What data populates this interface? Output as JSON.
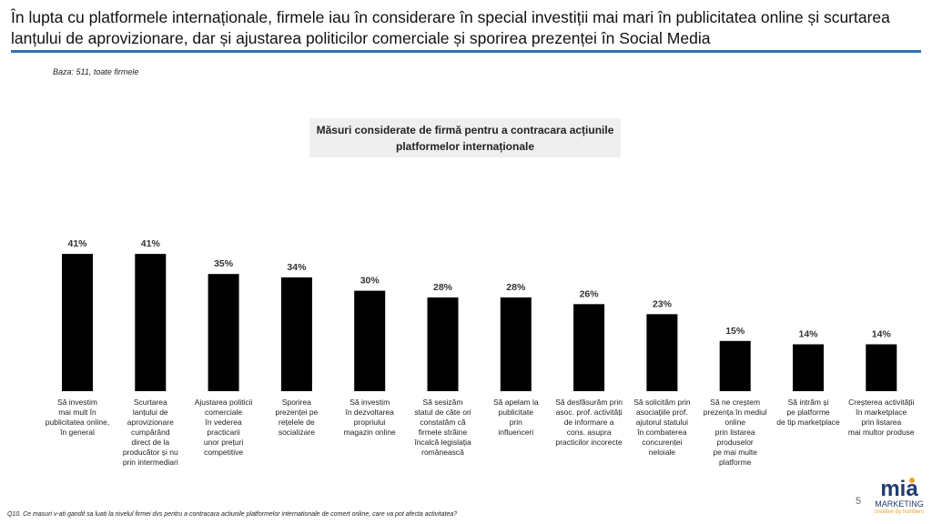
{
  "header": {
    "title": "În lupta cu platformele internaționale, firmele iau în considerare în special investiții mai mari în publicitatea online și scurtarea lanțului de aprovizionare, dar și ajustarea politicilor comerciale și sporirea prezenței în Social Media",
    "base": "Baza: 511, toate firmele"
  },
  "chart_data": {
    "type": "bar",
    "title": "Măsuri considerate de firmă pentru a contracara acțiunile platformelor internaționale",
    "ylim": [
      0,
      45
    ],
    "bar_color": "#000000",
    "categories": [
      "Să investim\nmai mult în\npublicitatea online,\nîn general",
      "Scurtarea\nlanțului de\naprovizionare\ncumpărând\ndirect de la\nproducător și nu\nprin intermediari",
      "Ajustarea politicii\ncomerciale\nîn vederea\npracticarii\nunor prețuri\ncompetitive",
      "Sporirea\nprezenței pe\nrețelele de\nsocializare",
      "Să investim\nîn dezvoltarea\npropriului\nmagazin online",
      "Să sesizăm\nstatul de câte ori\nconstatăm că\nfirmele străine\nîncalcă legislația\nromânească",
      "Să apelam la\npublicitate\nprin\ninfluenceri",
      "Să desfăsurăm prin\nasoc. prof. activități\nde informare a\ncons. asupra\npracticilor incorecte",
      "Să solicităm prin\nasociațiile prof.\najutorul statului\nîn combaterea\nconcurenței\nneloiale",
      "Să ne creștem\nprezența în mediul\nonline\nprin listarea\nproduselor\npe mai multe\nplatforme",
      "Să intrăm și\npe platforme\nde tip marketplace",
      "Creșterea activității\nîn marketplace\nprin listarea\nmai multor produse"
    ],
    "values": [
      41,
      41,
      35,
      34,
      30,
      28,
      28,
      26,
      23,
      15,
      14,
      14
    ],
    "labels": [
      "41%",
      "41%",
      "35%",
      "34%",
      "30%",
      "28%",
      "28%",
      "26%",
      "23%",
      "15%",
      "14%",
      "14%"
    ]
  },
  "footer": {
    "question": "Q10. Ce masuri v-ati gandit sa luati la nivelul firmei dvs pentru a contracara actiunile platformelor internationale de comert online, care va pot afecta activitatea?",
    "page": "5"
  },
  "logo": {
    "name": "mia",
    "sub": "MARKETING",
    "tagline": "creative by numbers"
  }
}
